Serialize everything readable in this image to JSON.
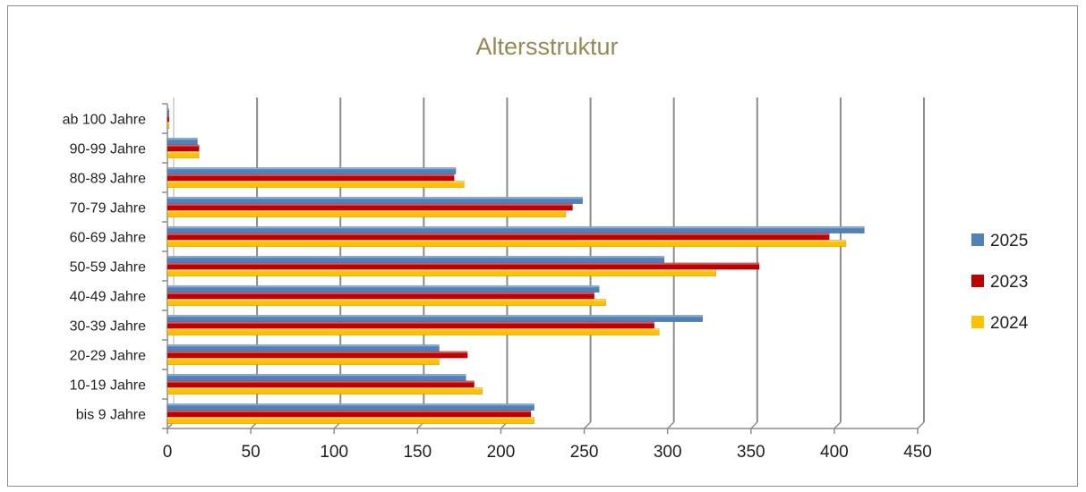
{
  "chart_data": {
    "type": "bar",
    "orientation": "horizontal",
    "title": "Altersstruktur",
    "xlabel": "",
    "ylabel": "",
    "xlim": [
      0,
      450
    ],
    "xticks": [
      0,
      50,
      100,
      150,
      200,
      250,
      300,
      350,
      400,
      450
    ],
    "grid": true,
    "legend_position": "right",
    "categories": [
      "bis 9 Jahre",
      "10-19 Jahre",
      "20-29 Jahre",
      "30-39 Jahre",
      "40-49 Jahre",
      "50-59 Jahre",
      "60-69 Jahre",
      "70-79 Jahre",
      "80-89 Jahre",
      "90-99 Jahre",
      "ab 100 Jahre"
    ],
    "series": [
      {
        "name": "2025",
        "color": "#4f81bd",
        "values": [
          220,
          179,
          163,
          321,
          259,
          298,
          418,
          249,
          173,
          18,
          1
        ]
      },
      {
        "name": "2023",
        "color": "#c00000",
        "values": [
          218,
          184,
          180,
          292,
          256,
          355,
          397,
          243,
          172,
          19,
          1
        ]
      },
      {
        "name": "2024",
        "color": "#ffc000",
        "values": [
          220,
          189,
          163,
          295,
          263,
          329,
          407,
          239,
          178,
          19,
          1
        ]
      }
    ]
  }
}
